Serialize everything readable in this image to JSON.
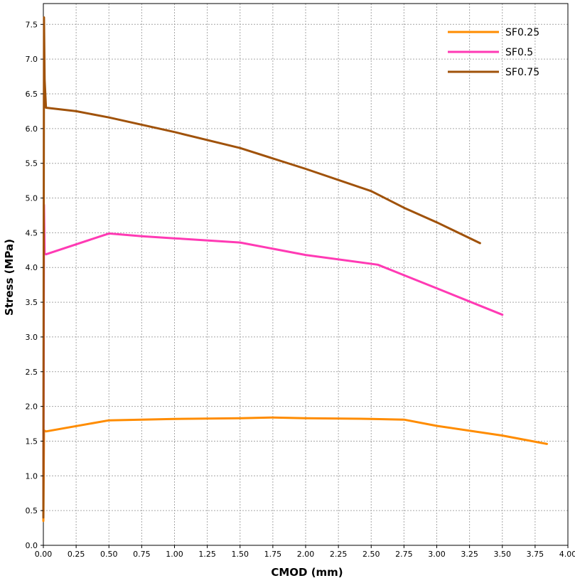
{
  "chart_data": {
    "type": "line",
    "xlabel": "CMOD (mm)",
    "ylabel": "Stress (MPa)",
    "xlim": [
      0,
      4.0
    ],
    "ylim": [
      0,
      7.8
    ],
    "xticks": [
      0.0,
      0.25,
      0.5,
      0.75,
      1.0,
      1.25,
      1.5,
      1.75,
      2.0,
      2.25,
      2.5,
      2.75,
      3.0,
      3.25,
      3.5,
      3.75,
      4.0
    ],
    "xtick_labels": [
      "0.00",
      "0.25",
      "0.50",
      "0.75",
      "1.00",
      "1.25",
      "1.50",
      "1.75",
      "2.00",
      "2.25",
      "2.50",
      "2.75",
      "3.00",
      "3.25",
      "3.50",
      "3.75",
      "4.00"
    ],
    "yticks": [
      0,
      0.5,
      1.0,
      1.5,
      2.0,
      2.5,
      3.0,
      3.5,
      4.0,
      4.5,
      5.0,
      5.5,
      6.0,
      6.5,
      7.0,
      7.5
    ],
    "ytick_labels": [
      "0.0",
      "0.5",
      "1.0",
      "1.5",
      "2.0",
      "2.5",
      "3.0",
      "3.5",
      "4.0",
      "4.5",
      "5.0",
      "5.5",
      "6.0",
      "6.5",
      "7.0",
      "7.5"
    ],
    "grid": true,
    "legend_position": "top-right",
    "series": [
      {
        "name": "SF0.25",
        "color": "#ff8c00",
        "x": [
          0.0,
          0.005,
          0.01,
          0.02,
          0.5,
          0.75,
          1.0,
          1.5,
          1.75,
          2.0,
          2.5,
          2.75,
          3.0,
          3.5,
          3.84
        ],
        "y": [
          0.35,
          1.64,
          1.65,
          1.64,
          1.8,
          1.81,
          1.82,
          1.83,
          1.84,
          1.83,
          1.82,
          1.81,
          1.72,
          1.58,
          1.46
        ]
      },
      {
        "name": "SF0.5",
        "color": "#ff3ab4",
        "x": [
          0.0,
          0.005,
          0.01,
          0.02,
          0.5,
          0.75,
          1.0,
          1.5,
          2.0,
          2.55,
          3.0,
          3.5
        ],
        "y": [
          0.6,
          4.9,
          4.2,
          4.19,
          4.49,
          4.45,
          4.42,
          4.36,
          4.18,
          4.04,
          3.7,
          3.32
        ]
      },
      {
        "name": "SF0.75",
        "color": "#a0520a",
        "x": [
          0.0,
          0.005,
          0.01,
          0.02,
          0.25,
          0.5,
          1.0,
          1.5,
          2.0,
          2.5,
          2.75,
          3.0,
          3.33
        ],
        "y": [
          0.4,
          7.6,
          6.7,
          6.3,
          6.25,
          6.16,
          5.95,
          5.72,
          5.42,
          5.1,
          4.86,
          4.65,
          4.35
        ]
      }
    ]
  }
}
